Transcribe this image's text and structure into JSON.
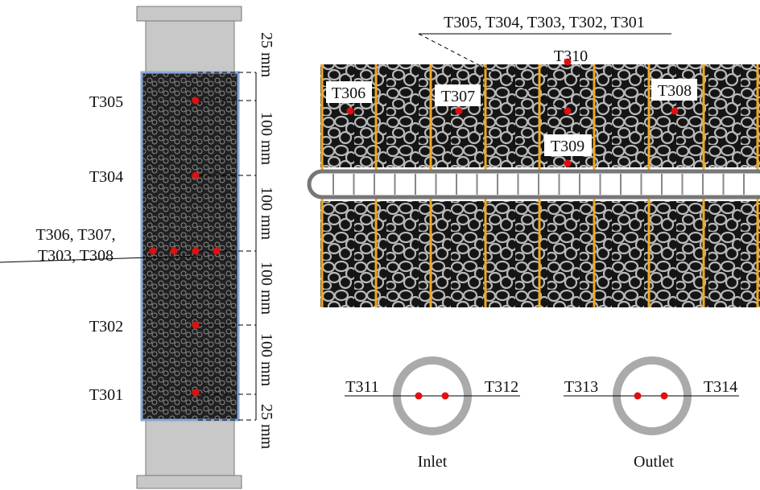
{
  "column": {
    "sensors": [
      "T305",
      "T304",
      "T306, T307,",
      "T303, T308",
      "T302",
      "T301"
    ],
    "dimensions": [
      "25 mm",
      "100 mm",
      "100 mm",
      "100 mm",
      "100 mm",
      "25 mm"
    ]
  },
  "cross_section": {
    "callout": "T305, T304, T303, T302, T301",
    "labels": [
      "T310",
      "T306",
      "T307",
      "T308",
      "T309"
    ]
  },
  "pipes": [
    {
      "left": "T311",
      "right": "T312",
      "name": "Inlet"
    },
    {
      "left": "T313",
      "right": "T314",
      "name": "Outlet"
    }
  ]
}
